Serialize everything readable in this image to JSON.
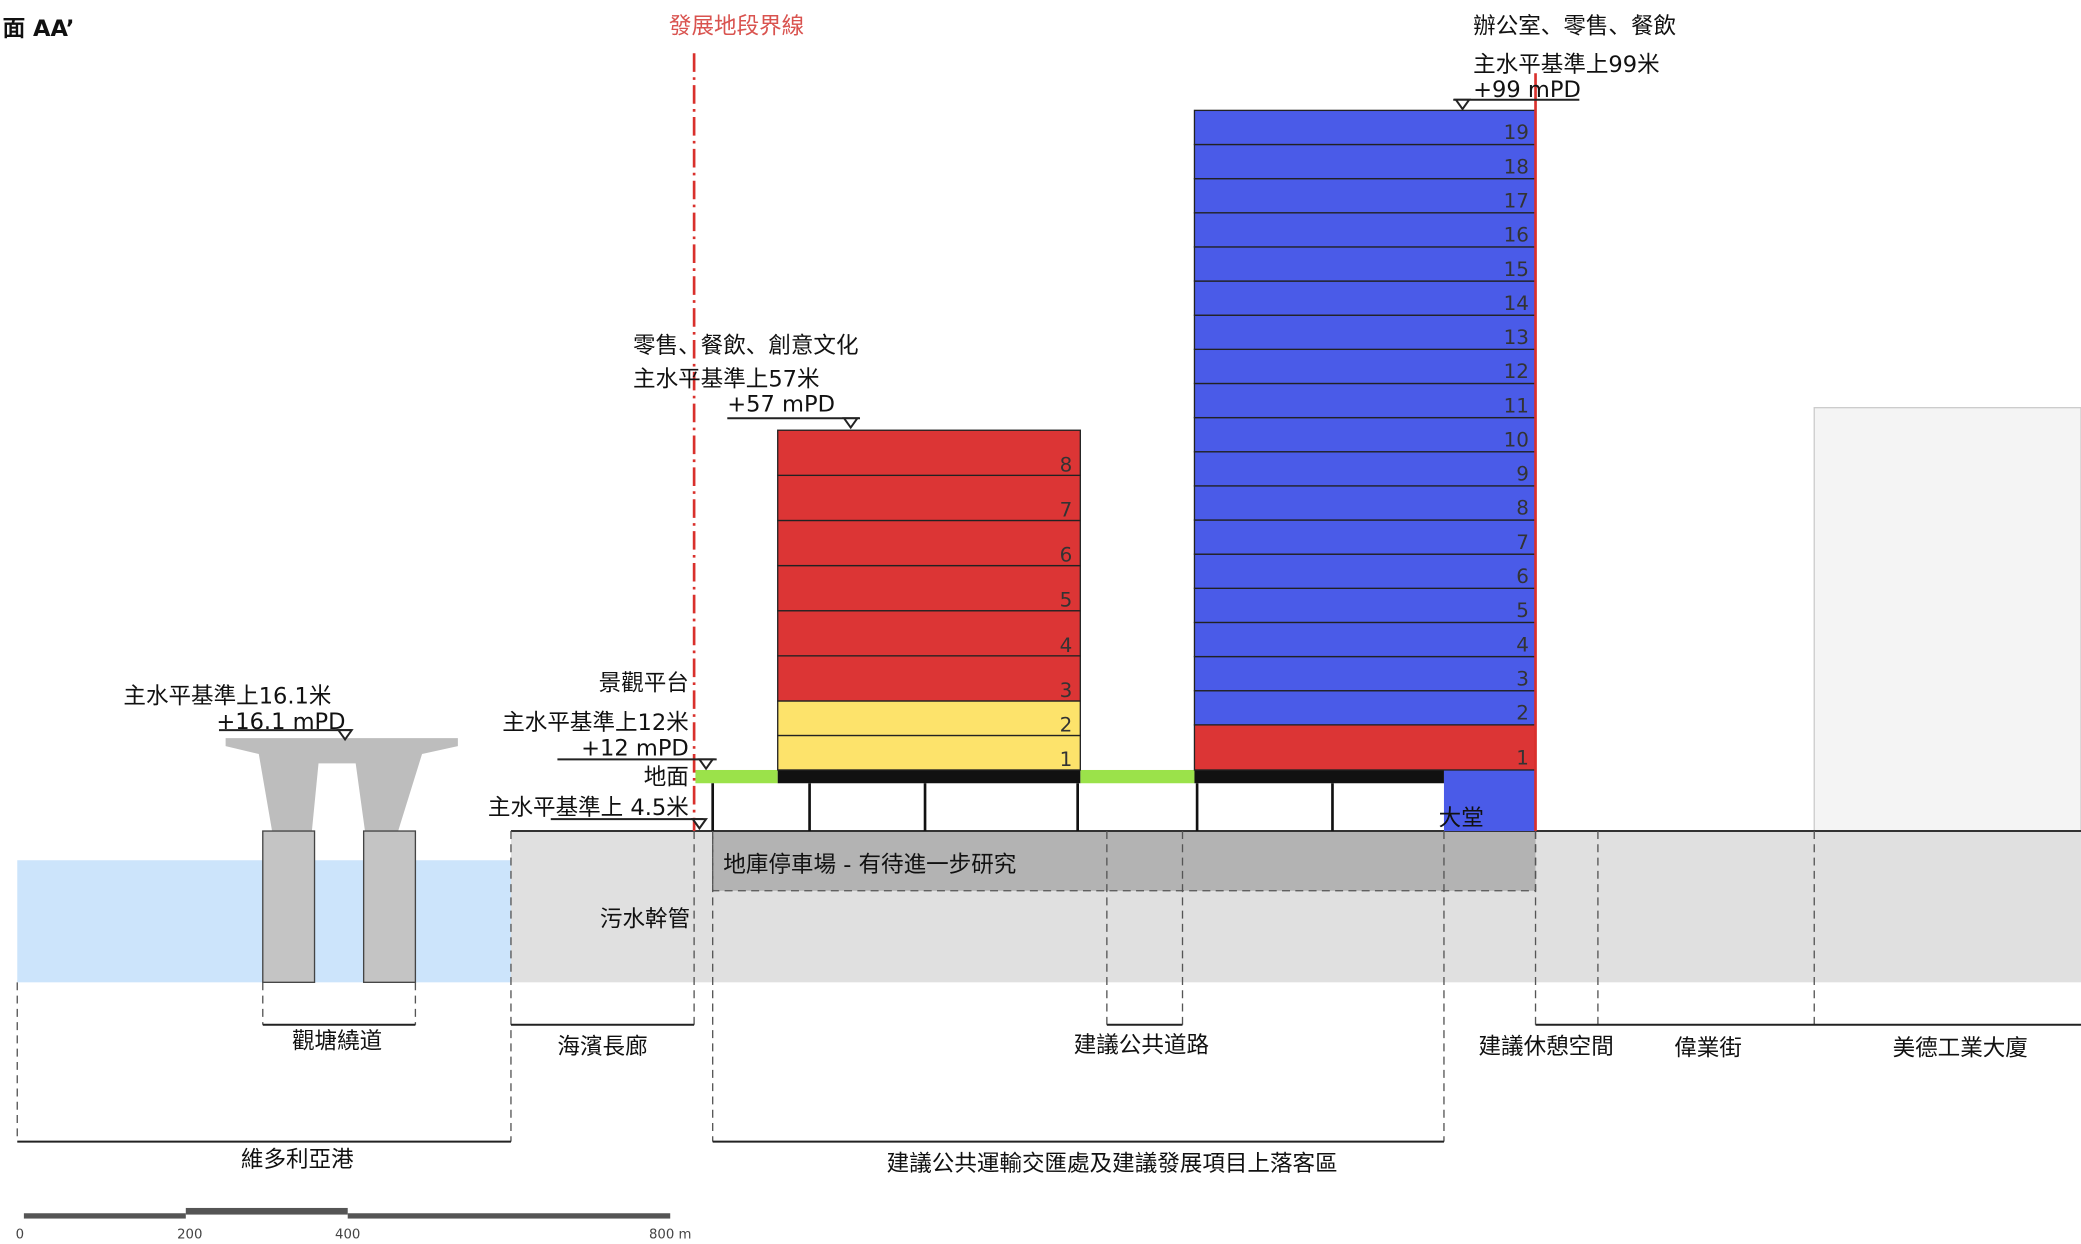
{
  "title": "面 AA’",
  "boundary_label": "發展地段界線",
  "tower_b": {
    "use": "辦公室、零售、餐飲",
    "height_label": "主水平基準上99米",
    "height_mpd": "+99 mPD",
    "floors": [
      "1",
      "2",
      "3",
      "4",
      "5",
      "6",
      "7",
      "8",
      "9",
      "10",
      "11",
      "12",
      "13",
      "14",
      "15",
      "16",
      "17",
      "18",
      "19"
    ],
    "lobby": "大堂"
  },
  "tower_a": {
    "use": "零售、餐飲、創意文化",
    "height_label": "主水平基準上57米",
    "height_mpd": "+57 mPD",
    "floors": [
      "1",
      "2",
      "3",
      "4",
      "5",
      "6",
      "7",
      "8"
    ]
  },
  "levels": {
    "deck": "景觀平台",
    "deck_height": "主水平基準上12米",
    "deck_mpd": "+12 mPD",
    "ground": "地面",
    "ground_height": "主水平基準上 4.5米"
  },
  "bridge": {
    "height_label": "主水平基準上16.1米",
    "height_mpd": "+16.1 mPD"
  },
  "basement": "地庫停車場 - 有待進一步研究",
  "sewer": "污水幹管",
  "zones": [
    "觀塘繞道",
    "海濱長廊",
    "建議公共道路",
    "建議休憩空間",
    "偉業街",
    "美德工業大廈",
    "維多利亞港",
    "建議公共運輸交匯處及建議發展項目上落客區"
  ],
  "scale_bar": [
    "0",
    "200",
    "400",
    "800 m"
  ]
}
